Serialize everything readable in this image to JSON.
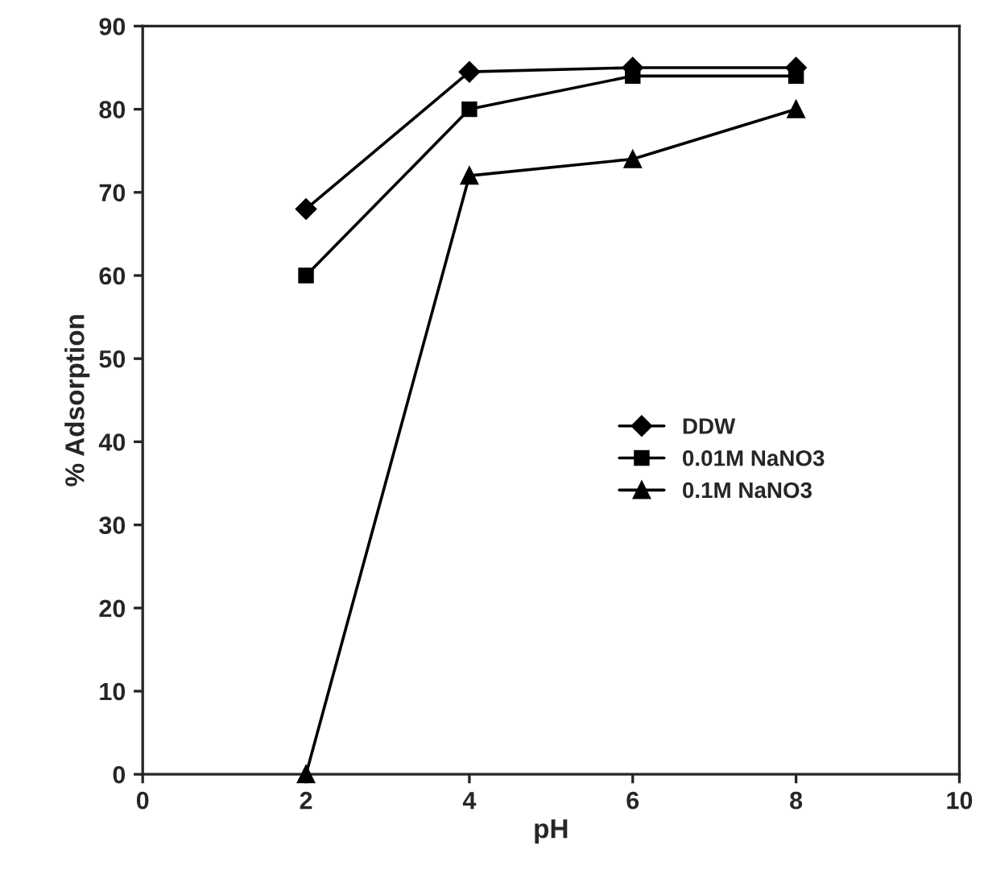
{
  "chart_data": {
    "type": "line",
    "xlabel": "pH",
    "ylabel": "% Adsorption",
    "x": [
      2,
      4,
      6,
      8
    ],
    "series": [
      {
        "name": "DDW",
        "color": "#000000",
        "marker": "diamond",
        "values": [
          68,
          84.5,
          85,
          85
        ]
      },
      {
        "name": "0.01M NaNO3",
        "color": "#000000",
        "marker": "square",
        "values": [
          60,
          80,
          84,
          84
        ]
      },
      {
        "name": "0.1M NaNO3",
        "color": "#000000",
        "marker": "triangle",
        "values": [
          0,
          72,
          74,
          80
        ]
      }
    ],
    "xlim": [
      0,
      10
    ],
    "xticks": [
      0,
      2,
      4,
      6,
      8,
      10
    ],
    "ylim": [
      0,
      90
    ],
    "yticks": [
      0,
      10,
      20,
      30,
      40,
      50,
      60,
      70,
      80,
      90
    ],
    "legend": "center right",
    "grid": false
  }
}
